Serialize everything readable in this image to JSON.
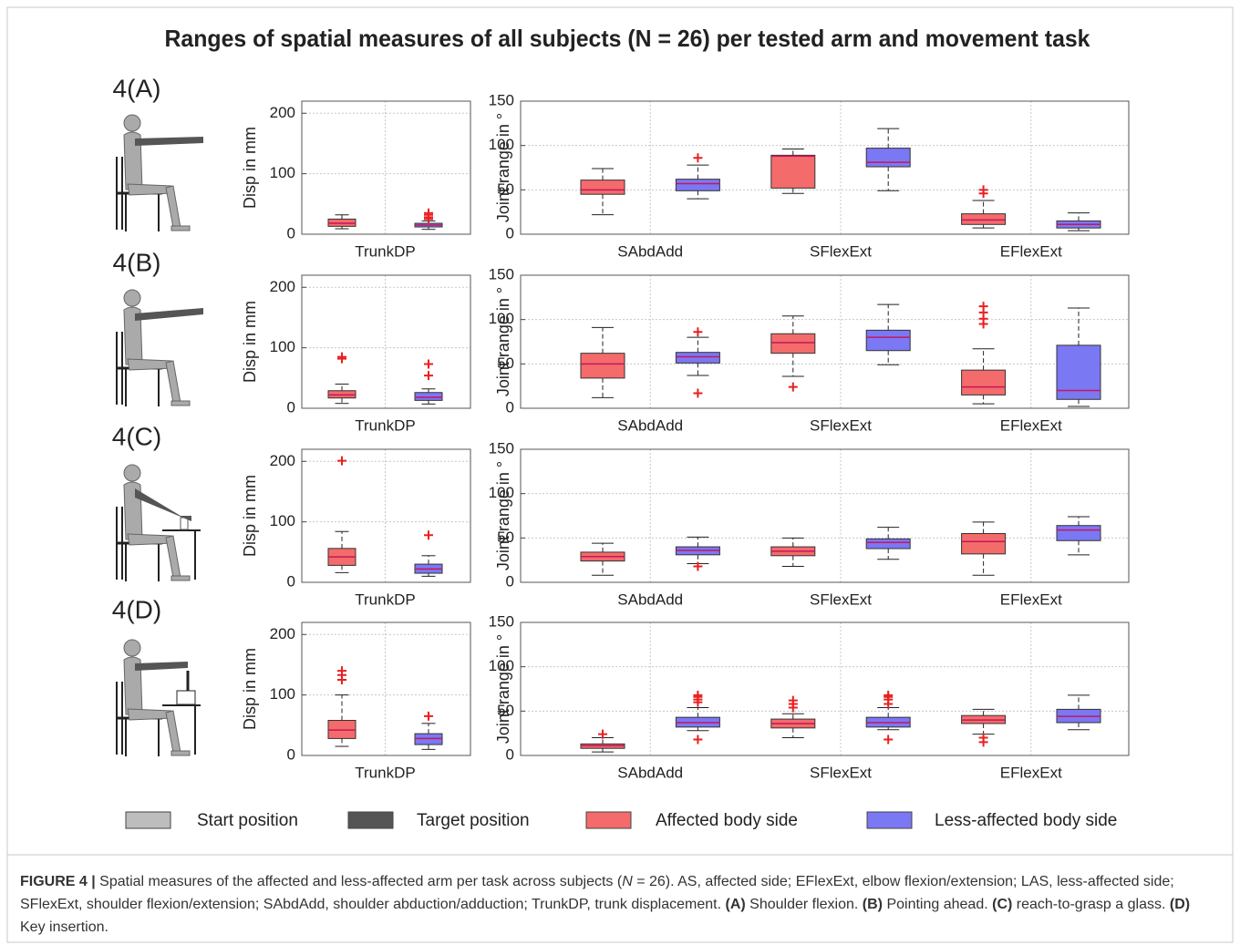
{
  "figure_title": "Ranges of spatial measures of all subjects (N = 26) per tested arm and movement task",
  "panels": [
    "4(A)",
    "4(B)",
    "4(C)",
    "4(D)"
  ],
  "legend": [
    {
      "label": "Start position",
      "color": "#bdbdbd"
    },
    {
      "label": "Target position",
      "color": "#555555"
    },
    {
      "label": "Affected body side",
      "color": "#f46b6b"
    },
    {
      "label": "Less-affected body side",
      "color": "#7b78f4"
    }
  ],
  "caption": [
    {
      "text": "FIGURE 4 |",
      "style": "bold"
    },
    {
      "text": " Spatial measures of the affected and less-affected arm per task across subjects (",
      "style": "normal"
    },
    {
      "text": "N",
      "style": "italic"
    },
    {
      "text": " = 26). AS, affected side; EFlexExt, elbow flexion/extension; LAS, less-affected side; SFlexExt, shoulder flexion/extension; SAbdAdd, shoulder abduction/adduction; TrunkDP, trunk displacement. ",
      "style": "normal"
    },
    {
      "text": "(A)",
      "style": "bold"
    },
    {
      "text": " Shoulder flexion. ",
      "style": "normal"
    },
    {
      "text": "(B)",
      "style": "bold"
    },
    {
      "text": " Pointing ahead. ",
      "style": "normal"
    },
    {
      "text": "(C)",
      "style": "bold"
    },
    {
      "text": " reach-to-grasp a glass. ",
      "style": "normal"
    },
    {
      "text": "(D)",
      "style": "bold"
    },
    {
      "text": " Key insertion.",
      "style": "normal"
    }
  ],
  "chart_data": [
    {
      "type": "box",
      "ylabel": "Disp in mm",
      "categories": [
        "TrunkDP"
      ],
      "ylim": [
        0,
        220
      ],
      "yticks": [
        0,
        100,
        200
      ],
      "grid": true,
      "series": [
        {
          "color": "#f46b6b",
          "values": [
            {
              "min": 9,
              "q1": 13,
              "median": 18,
              "q3": 25,
              "max": 32,
              "outliers": []
            }
          ]
        },
        {
          "color": "#7b78f4",
          "values": [
            {
              "min": 8,
              "q1": 12,
              "median": 15,
              "q3": 18,
              "max": 22,
              "outliers": [
                25,
                28,
                32,
                35
              ]
            }
          ]
        }
      ]
    },
    {
      "type": "box",
      "ylabel": "Joint range in °",
      "categories": [
        "SAbdAdd",
        "SFlexExt",
        "EFlexExt"
      ],
      "ylim": [
        0,
        150
      ],
      "yticks": [
        0,
        50,
        100,
        150
      ],
      "grid": true,
      "series": [
        {
          "color": "#f46b6b",
          "values": [
            {
              "min": 22,
              "q1": 45,
              "median": 50,
              "q3": 61,
              "max": 74,
              "outliers": []
            },
            {
              "min": 46,
              "q1": 52,
              "median": 88,
              "q3": 89,
              "max": 96,
              "outliers": []
            },
            {
              "min": 7,
              "q1": 11,
              "median": 16,
              "q3": 23,
              "max": 38,
              "outliers": [
                46,
                50
              ]
            }
          ]
        },
        {
          "color": "#7b78f4",
          "values": [
            {
              "min": 40,
              "q1": 49,
              "median": 57,
              "q3": 62,
              "max": 78,
              "outliers": [
                86
              ]
            },
            {
              "min": 49,
              "q1": 76,
              "median": 81,
              "q3": 97,
              "max": 119,
              "outliers": []
            },
            {
              "min": 4,
              "q1": 7,
              "median": 11,
              "q3": 15,
              "max": 24,
              "outliers": []
            }
          ]
        }
      ]
    },
    {
      "type": "box",
      "ylabel": "Disp in mm",
      "categories": [
        "TrunkDP"
      ],
      "ylim": [
        0,
        220
      ],
      "yticks": [
        0,
        100,
        200
      ],
      "grid": true,
      "series": [
        {
          "color": "#f46b6b",
          "values": [
            {
              "min": 8,
              "q1": 17,
              "median": 22,
              "q3": 29,
              "max": 40,
              "outliers": [
                82,
                85
              ]
            }
          ]
        },
        {
          "color": "#7b78f4",
          "values": [
            {
              "min": 7,
              "q1": 13,
              "median": 18,
              "q3": 26,
              "max": 32,
              "outliers": [
                54,
                73
              ]
            }
          ]
        }
      ]
    },
    {
      "type": "box",
      "ylabel": "Joint range in °",
      "categories": [
        "SAbdAdd",
        "SFlexExt",
        "EFlexExt"
      ],
      "ylim": [
        0,
        150
      ],
      "yticks": [
        0,
        50,
        100,
        150
      ],
      "grid": true,
      "series": [
        {
          "color": "#f46b6b",
          "values": [
            {
              "min": 12,
              "q1": 34,
              "median": 50,
              "q3": 62,
              "max": 91,
              "outliers": []
            },
            {
              "min": 36,
              "q1": 62,
              "median": 74,
              "q3": 84,
              "max": 104,
              "outliers": [
                24
              ]
            },
            {
              "min": 5,
              "q1": 15,
              "median": 24,
              "q3": 43,
              "max": 67,
              "outliers": [
                95,
                101,
                108,
                115
              ]
            }
          ]
        },
        {
          "color": "#7b78f4",
          "values": [
            {
              "min": 37,
              "q1": 51,
              "median": 58,
              "q3": 63,
              "max": 80,
              "outliers": [
                17,
                86
              ]
            },
            {
              "min": 49,
              "q1": 65,
              "median": 80,
              "q3": 88,
              "max": 117,
              "outliers": []
            },
            {
              "min": 2,
              "q1": 10,
              "median": 20,
              "q3": 71,
              "max": 113,
              "outliers": []
            }
          ]
        }
      ]
    },
    {
      "type": "box",
      "ylabel": "Disp in mm",
      "categories": [
        "TrunkDP"
      ],
      "ylim": [
        0,
        220
      ],
      "yticks": [
        0,
        100,
        200
      ],
      "grid": true,
      "series": [
        {
          "color": "#f46b6b",
          "values": [
            {
              "min": 16,
              "q1": 28,
              "median": 42,
              "q3": 56,
              "max": 84,
              "outliers": [
                201
              ]
            }
          ]
        },
        {
          "color": "#7b78f4",
          "values": [
            {
              "min": 10,
              "q1": 15,
              "median": 22,
              "q3": 30,
              "max": 44,
              "outliers": [
                78
              ]
            }
          ]
        }
      ]
    },
    {
      "type": "box",
      "ylabel": "Joint range in °",
      "categories": [
        "SAbdAdd",
        "SFlexExt",
        "EFlexExt"
      ],
      "ylim": [
        0,
        150
      ],
      "yticks": [
        0,
        50,
        100,
        150
      ],
      "grid": true,
      "series": [
        {
          "color": "#f46b6b",
          "values": [
            {
              "min": 8,
              "q1": 24,
              "median": 29,
              "q3": 34,
              "max": 44,
              "outliers": []
            },
            {
              "min": 18,
              "q1": 30,
              "median": 35,
              "q3": 40,
              "max": 50,
              "outliers": []
            },
            {
              "min": 8,
              "q1": 32,
              "median": 46,
              "q3": 55,
              "max": 68,
              "outliers": []
            }
          ]
        },
        {
          "color": "#7b78f4",
          "values": [
            {
              "min": 21,
              "q1": 31,
              "median": 36,
              "q3": 40,
              "max": 51,
              "outliers": [
                18
              ]
            },
            {
              "min": 26,
              "q1": 38,
              "median": 45,
              "q3": 49,
              "max": 62,
              "outliers": []
            },
            {
              "min": 31,
              "q1": 47,
              "median": 59,
              "q3": 64,
              "max": 74,
              "outliers": []
            }
          ]
        }
      ]
    },
    {
      "type": "box",
      "ylabel": "Disp in mm",
      "categories": [
        "TrunkDP"
      ],
      "ylim": [
        0,
        220
      ],
      "yticks": [
        0,
        100,
        200
      ],
      "grid": true,
      "series": [
        {
          "color": "#f46b6b",
          "values": [
            {
              "min": 15,
              "q1": 28,
              "median": 42,
              "q3": 58,
              "max": 100,
              "outliers": [
                125,
                133,
                140
              ]
            }
          ]
        },
        {
          "color": "#7b78f4",
          "values": [
            {
              "min": 10,
              "q1": 18,
              "median": 28,
              "q3": 36,
              "max": 53,
              "outliers": [
                65
              ]
            }
          ]
        }
      ]
    },
    {
      "type": "box",
      "ylabel": "Joint range in °",
      "categories": [
        "SAbdAdd",
        "SFlexExt",
        "EFlexExt"
      ],
      "ylim": [
        0,
        150
      ],
      "yticks": [
        0,
        50,
        100,
        150
      ],
      "grid": true,
      "series": [
        {
          "color": "#f46b6b",
          "values": [
            {
              "min": 4,
              "q1": 8,
              "median": 11,
              "q3": 13,
              "max": 20,
              "outliers": [
                24
              ]
            },
            {
              "min": 20,
              "q1": 31,
              "median": 36,
              "q3": 41,
              "max": 47,
              "outliers": [
                54,
                58,
                62
              ]
            },
            {
              "min": 24,
              "q1": 36,
              "median": 40,
              "q3": 45,
              "max": 52,
              "outliers": [
                15,
                20
              ]
            }
          ]
        },
        {
          "color": "#7b78f4",
          "values": [
            {
              "min": 28,
              "q1": 32,
              "median": 37,
              "q3": 43,
              "max": 54,
              "outliers": [
                18,
                60,
                63,
                66,
                68
              ]
            },
            {
              "min": 29,
              "q1": 32,
              "median": 37,
              "q3": 43,
              "max": 54,
              "outliers": [
                18,
                58,
                63,
                66,
                68
              ]
            },
            {
              "min": 29,
              "q1": 37,
              "median": 44,
              "q3": 52,
              "max": 68,
              "outliers": []
            }
          ]
        }
      ]
    }
  ]
}
